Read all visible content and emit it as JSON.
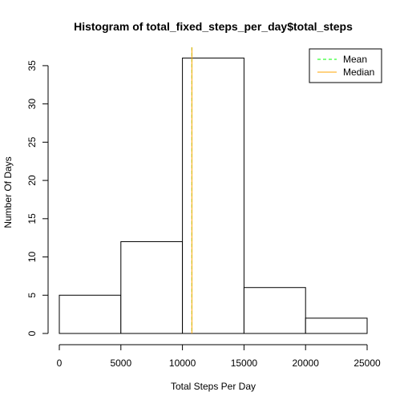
{
  "chart_data": {
    "type": "bar",
    "title": "Histogram of total_fixed_steps_per_day$total_steps",
    "xlabel": "Total Steps Per Day",
    "ylabel": "Number Of Days",
    "bins": [
      {
        "from": 0,
        "to": 5000,
        "count": 5
      },
      {
        "from": 5000,
        "to": 10000,
        "count": 12
      },
      {
        "from": 10000,
        "to": 15000,
        "count": 36
      },
      {
        "from": 15000,
        "to": 20000,
        "count": 6
      },
      {
        "from": 20000,
        "to": 25000,
        "count": 2
      }
    ],
    "xlim": [
      0,
      25000
    ],
    "ylim": [
      0,
      37.4
    ],
    "x_ticks": [
      0,
      5000,
      10000,
      15000,
      20000,
      25000
    ],
    "y_ticks": [
      0,
      5,
      10,
      15,
      20,
      25,
      30,
      35
    ],
    "grid": false,
    "mean": 10766,
    "median": 10766,
    "mean_color": "#00FF00",
    "median_color": "#FFA500",
    "legend": {
      "placement": "top-right",
      "entries": [
        {
          "label": "Mean",
          "color": "#00FF00",
          "style": "dashed"
        },
        {
          "label": "Median",
          "color": "#FFA500",
          "style": "solid"
        }
      ]
    }
  }
}
